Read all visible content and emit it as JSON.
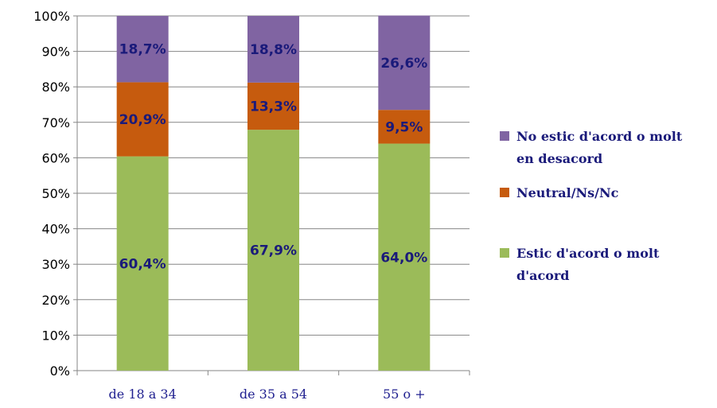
{
  "chart_data": {
    "type": "bar",
    "stacked": true,
    "categories": [
      "de 18 a 34",
      "de 35 a 54",
      "55 o +"
    ],
    "series": [
      {
        "name": "Estic d'acord o molt d'acord",
        "legend_lines": [
          "Estic d'acord o molt",
          "d'acord"
        ],
        "color": "#9bbb59",
        "values": [
          60.4,
          67.9,
          64.0
        ],
        "labels": [
          "60,4%",
          "67,9%",
          "64,0%"
        ]
      },
      {
        "name": "Neutral/Ns/Nc",
        "legend_lines": [
          "Neutral/Ns/Nc"
        ],
        "color": "#c65b0e",
        "values": [
          20.9,
          13.3,
          9.5
        ],
        "labels": [
          "20,9%",
          "13,3%",
          "9,5%"
        ]
      },
      {
        "name": "No estic d'acord o molt en desacord",
        "legend_lines": [
          "No estic d'acord o molt",
          "en desacord"
        ],
        "color": "#8064a2",
        "values": [
          18.7,
          18.8,
          26.6
        ],
        "labels": [
          "18,7%",
          "18,8%",
          "26,6%"
        ]
      }
    ],
    "y_ticks": [
      "0%",
      "10%",
      "20%",
      "30%",
      "40%",
      "50%",
      "60%",
      "70%",
      "80%",
      "90%",
      "100%"
    ],
    "ylim": [
      0,
      100
    ],
    "grid": true,
    "legend_position": "right",
    "title": "",
    "xlabel": "",
    "ylabel": ""
  }
}
